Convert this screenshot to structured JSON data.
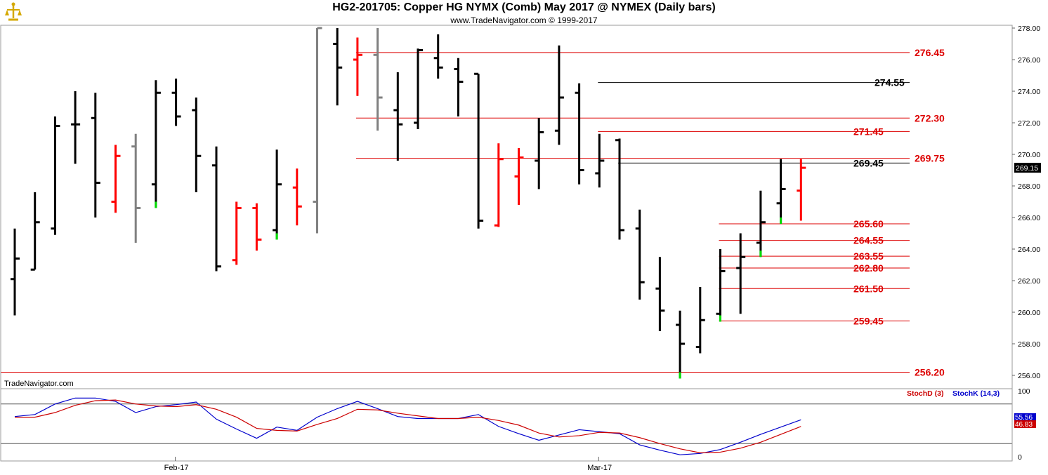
{
  "header": {
    "title": "HG2-201705:  Copper HG NYMX (Comb) May 2017 @ NYMEX  (Daily bars)",
    "subtitle": "www.TradeNavigator.com © 1999-2017"
  },
  "footer": {
    "brand": "TradeNavigator.com"
  },
  "colors": {
    "up": "#000000",
    "down": "#ff0000",
    "neutral": "#808080",
    "green": "#00dd00",
    "stochK": "#0000cc",
    "stochD": "#cc0000"
  },
  "chart_data": [
    {
      "type": "ohlc",
      "ylim": [
        255.6,
        278.2
      ],
      "yticks": [
        "278.00",
        "276.00",
        "274.00",
        "272.00",
        "270.00",
        "268.00",
        "266.00",
        "264.00",
        "262.00",
        "260.00",
        "258.00",
        "256.00"
      ],
      "xticks": [
        {
          "label": "Feb-17",
          "index": 8
        },
        {
          "label": "Mar-17",
          "index": 29
        }
      ],
      "last_price": "269.15",
      "levels": [
        {
          "label": "276.45",
          "value": 276.45,
          "color": "red",
          "start": 17
        },
        {
          "label": "274.55",
          "value": 274.55,
          "color": "black",
          "start": 29
        },
        {
          "label": "272.30",
          "value": 272.3,
          "color": "red",
          "start": 17
        },
        {
          "label": "271.45",
          "value": 271.45,
          "color": "red",
          "start": 29
        },
        {
          "label": "269.75",
          "value": 269.75,
          "color": "red",
          "start": 17
        },
        {
          "label": "269.45",
          "value": 269.45,
          "color": "black",
          "start": 30
        },
        {
          "label": "265.60",
          "value": 265.6,
          "color": "red",
          "start": 35
        },
        {
          "label": "264.55",
          "value": 264.55,
          "color": "red",
          "start": 35
        },
        {
          "label": "263.55",
          "value": 263.55,
          "color": "red",
          "start": 35
        },
        {
          "label": "262.80",
          "value": 262.8,
          "color": "red",
          "start": 35
        },
        {
          "label": "261.50",
          "value": 261.5,
          "color": "red",
          "start": 35
        },
        {
          "label": "259.45",
          "value": 259.45,
          "color": "red",
          "start": 35
        },
        {
          "label": "256.20",
          "value": 256.2,
          "color": "red",
          "start": -1
        }
      ],
      "bars": [
        {
          "o": 262.1,
          "h": 265.3,
          "l": 259.8,
          "c": 263.4,
          "col": "up"
        },
        {
          "o": 262.7,
          "h": 267.6,
          "l": 262.7,
          "c": 265.7,
          "col": "up"
        },
        {
          "o": 265.3,
          "h": 272.4,
          "l": 264.9,
          "c": 271.8,
          "col": "up"
        },
        {
          "o": 271.9,
          "h": 274.0,
          "l": 269.4,
          "c": 271.9,
          "col": "up"
        },
        {
          "o": 272.3,
          "h": 273.9,
          "l": 266.0,
          "c": 268.2,
          "col": "up"
        },
        {
          "o": 267.0,
          "h": 270.6,
          "l": 266.3,
          "c": 269.9,
          "col": "down"
        },
        {
          "o": 270.5,
          "h": 271.3,
          "l": 264.4,
          "c": 266.6,
          "col": "neutral"
        },
        {
          "o": 268.1,
          "h": 274.7,
          "l": 266.6,
          "c": 273.9,
          "col": "up",
          "tail": "green"
        },
        {
          "o": 273.9,
          "h": 274.8,
          "l": 271.8,
          "c": 272.4,
          "col": "up"
        },
        {
          "o": 272.8,
          "h": 273.6,
          "l": 267.6,
          "c": 269.9,
          "col": "up"
        },
        {
          "o": 269.3,
          "h": 270.5,
          "l": 262.6,
          "c": 262.9,
          "col": "up"
        },
        {
          "o": 263.3,
          "h": 267.0,
          "l": 263.0,
          "c": 266.6,
          "col": "down"
        },
        {
          "o": 266.6,
          "h": 266.9,
          "l": 263.9,
          "c": 264.6,
          "col": "down"
        },
        {
          "o": 265.2,
          "h": 270.3,
          "l": 264.6,
          "c": 268.1,
          "col": "up",
          "tail": "green"
        },
        {
          "o": 267.9,
          "h": 269.1,
          "l": 265.5,
          "c": 266.7,
          "col": "down"
        },
        {
          "o": 267.0,
          "h": 278.0,
          "l": 265.0,
          "c": 278.0,
          "col": "neutral"
        },
        {
          "o": 277.0,
          "h": 278.0,
          "l": 273.1,
          "c": 275.5,
          "col": "up"
        },
        {
          "o": 276.0,
          "h": 277.4,
          "l": 273.7,
          "c": 276.3,
          "col": "down"
        },
        {
          "o": 276.3,
          "h": 278.0,
          "l": 271.5,
          "c": 273.6,
          "col": "neutral"
        },
        {
          "o": 272.8,
          "h": 275.2,
          "l": 269.6,
          "c": 271.9,
          "col": "up"
        },
        {
          "o": 272.0,
          "h": 276.7,
          "l": 271.6,
          "c": 276.6,
          "col": "up"
        },
        {
          "o": 276.1,
          "h": 277.6,
          "l": 274.8,
          "c": 275.5,
          "col": "up"
        },
        {
          "o": 275.4,
          "h": 276.1,
          "l": 272.4,
          "c": 274.6,
          "col": "up"
        },
        {
          "o": 275.1,
          "h": 275.1,
          "l": 265.3,
          "c": 265.8,
          "col": "up"
        },
        {
          "o": 265.5,
          "h": 270.7,
          "l": 265.4,
          "c": 269.7,
          "col": "down"
        },
        {
          "o": 268.6,
          "h": 270.4,
          "l": 266.8,
          "c": 269.8,
          "col": "down"
        },
        {
          "o": 269.6,
          "h": 272.3,
          "l": 267.8,
          "c": 271.4,
          "col": "up"
        },
        {
          "o": 271.5,
          "h": 276.9,
          "l": 270.6,
          "c": 273.6,
          "col": "up"
        },
        {
          "o": 273.9,
          "h": 274.5,
          "l": 268.1,
          "c": 269.0,
          "col": "up"
        },
        {
          "o": 268.8,
          "h": 271.3,
          "l": 267.9,
          "c": 269.6,
          "col": "up"
        },
        {
          "o": 270.9,
          "h": 271.0,
          "l": 264.6,
          "c": 265.2,
          "col": "up"
        },
        {
          "o": 265.3,
          "h": 266.5,
          "l": 260.8,
          "c": 261.9,
          "col": "up"
        },
        {
          "o": 261.5,
          "h": 263.5,
          "l": 258.8,
          "c": 260.1,
          "col": "up"
        },
        {
          "o": 259.2,
          "h": 260.1,
          "l": 255.8,
          "c": 258.0,
          "col": "up",
          "tail": "green"
        },
        {
          "o": 257.8,
          "h": 261.6,
          "l": 257.4,
          "c": 259.5,
          "col": "up"
        },
        {
          "o": 259.9,
          "h": 264.0,
          "l": 259.4,
          "c": 262.6,
          "col": "up",
          "tail": "green"
        },
        {
          "o": 262.8,
          "h": 265.0,
          "l": 259.9,
          "c": 263.5,
          "col": "up"
        },
        {
          "o": 264.4,
          "h": 267.7,
          "l": 263.5,
          "c": 265.7,
          "col": "up",
          "tail": "green"
        },
        {
          "o": 266.9,
          "h": 269.7,
          "l": 265.6,
          "c": 267.8,
          "col": "up",
          "tail": "green"
        },
        {
          "o": 267.7,
          "h": 269.7,
          "l": 265.8,
          "c": 269.15,
          "col": "down"
        }
      ]
    },
    {
      "type": "line",
      "ylim": [
        0,
        100
      ],
      "yticks": [
        "100",
        "0"
      ],
      "overbought": 80,
      "oversold": 20,
      "legend": [
        {
          "label": "StochD (3)",
          "color": "#cc0000"
        },
        {
          "label": "StochK (14,3)",
          "color": "#0000cc"
        }
      ],
      "series": [
        {
          "name": "StochK (14,3)",
          "values": [
            61,
            64,
            80,
            89,
            89,
            84,
            67,
            76,
            79,
            83,
            57,
            42,
            28,
            45,
            40,
            60,
            73,
            84,
            73,
            61,
            58,
            58,
            58,
            64,
            46,
            35,
            25,
            33,
            41,
            38,
            35,
            18,
            10,
            3,
            5,
            11,
            22,
            34,
            45,
            56
          ]
        },
        {
          "name": "StochD (3)",
          "values": [
            60,
            60,
            67,
            78,
            85,
            86,
            80,
            77,
            76,
            79,
            72,
            60,
            43,
            40,
            39,
            49,
            58,
            72,
            71,
            66,
            62,
            58,
            58,
            60,
            55,
            48,
            36,
            30,
            32,
            37,
            36,
            29,
            20,
            12,
            6,
            7,
            13,
            22,
            34,
            46
          ]
        }
      ],
      "last_values": [
        "55.56",
        "46.83"
      ]
    }
  ]
}
